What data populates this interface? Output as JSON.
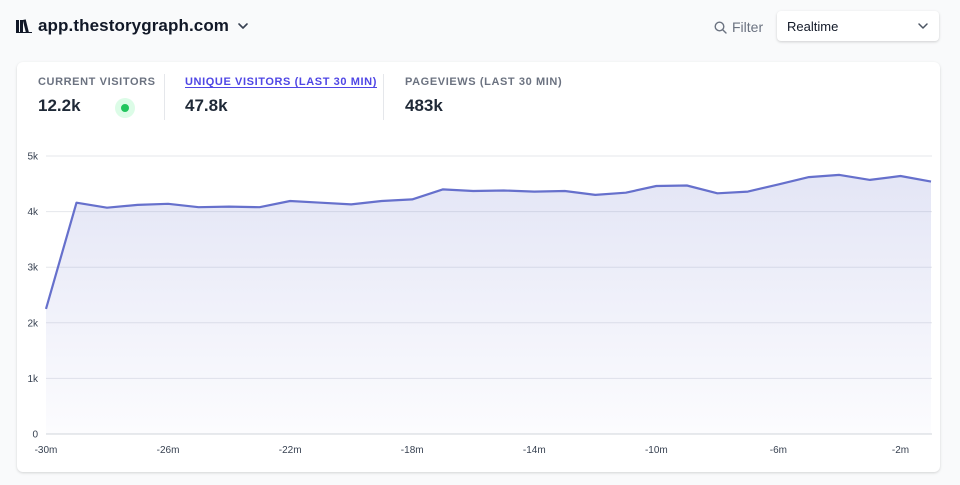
{
  "header": {
    "site_domain": "app.thestorygraph.com",
    "logo_icon": "books-icon",
    "filter_label": "Filter",
    "period": {
      "selected": "Realtime"
    }
  },
  "metrics": [
    {
      "label": "CURRENT VISITORS",
      "value": "12.2k",
      "active": false
    },
    {
      "label": "UNIQUE VISITORS (LAST 30 MIN)",
      "value": "47.8k",
      "active": true
    },
    {
      "label": "PAGEVIEWS (LAST 30 MIN)",
      "value": "483k",
      "active": false
    }
  ],
  "colors": {
    "accent": "#4f46e5",
    "line": "#6670cc",
    "live": "#22c55e"
  },
  "chart_data": {
    "type": "area",
    "x": [
      -30,
      -29,
      -28,
      -27,
      -26,
      -25,
      -24,
      -23,
      -22,
      -21,
      -20,
      -19,
      -18,
      -17,
      -16,
      -15,
      -14,
      -13,
      -12,
      -11,
      -10,
      -9,
      -8,
      -7,
      -6,
      -5,
      -4,
      -3,
      -2,
      -1
    ],
    "values": [
      2250,
      4160,
      4070,
      4120,
      4140,
      4080,
      4090,
      4080,
      4190,
      4160,
      4130,
      4190,
      4220,
      4400,
      4370,
      4380,
      4360,
      4370,
      4300,
      4340,
      4460,
      4470,
      4330,
      4360,
      4490,
      4620,
      4660,
      4570,
      4640,
      4540
    ],
    "ylim": [
      0,
      5000
    ],
    "yticks": [
      "0",
      "1k",
      "2k",
      "3k",
      "4k",
      "5k"
    ],
    "xticks": [
      "-30m",
      "-26m",
      "-22m",
      "-18m",
      "-14m",
      "-10m",
      "-6m",
      "-2m"
    ],
    "xtick_values": [
      -30,
      -26,
      -22,
      -18,
      -14,
      -10,
      -6,
      -2
    ],
    "grid": true
  }
}
